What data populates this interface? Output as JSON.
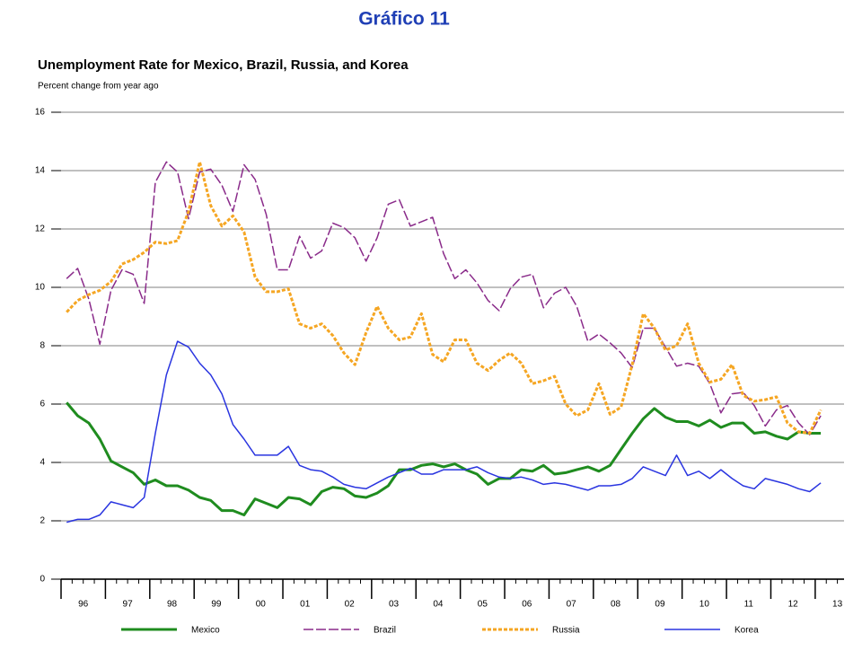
{
  "page_title": "Gráfico 11",
  "chart_data": {
    "type": "line",
    "title": "Unemployment Rate for Mexico, Brazil, Russia, and Korea",
    "subtitle": "Percent change from year ago",
    "x": [
      1996.125,
      1996.375,
      1996.625,
      1996.875,
      1997.125,
      1997.375,
      1997.625,
      1997.875,
      1998.125,
      1998.375,
      1998.625,
      1998.875,
      1999.125,
      1999.375,
      1999.625,
      1999.875,
      2000.125,
      2000.375,
      2000.625,
      2000.875,
      2001.125,
      2001.375,
      2001.625,
      2001.875,
      2002.125,
      2002.375,
      2002.625,
      2002.875,
      2003.125,
      2003.375,
      2003.625,
      2003.875,
      2004.125,
      2004.375,
      2004.625,
      2004.875,
      2005.125,
      2005.375,
      2005.625,
      2005.875,
      2006.125,
      2006.375,
      2006.625,
      2006.875,
      2007.125,
      2007.375,
      2007.625,
      2007.875,
      2008.125,
      2008.375,
      2008.625,
      2008.875,
      2009.125,
      2009.375,
      2009.625,
      2009.875,
      2010.125,
      2010.375,
      2010.625,
      2010.875,
      2011.125,
      2011.375,
      2011.625,
      2011.875,
      2012.125,
      2012.375,
      2012.625,
      2012.875,
      2013.125
    ],
    "xlim": [
      1996,
      2013.65
    ],
    "xticks": [
      {
        "value": 1996,
        "label": "96"
      },
      {
        "value": 1997,
        "label": "97"
      },
      {
        "value": 1998,
        "label": "98"
      },
      {
        "value": 1999,
        "label": "99"
      },
      {
        "value": 2000,
        "label": "00"
      },
      {
        "value": 2001,
        "label": "01"
      },
      {
        "value": 2002,
        "label": "02"
      },
      {
        "value": 2003,
        "label": "03"
      },
      {
        "value": 2004,
        "label": "04"
      },
      {
        "value": 2005,
        "label": "05"
      },
      {
        "value": 2006,
        "label": "06"
      },
      {
        "value": 2007,
        "label": "07"
      },
      {
        "value": 2008,
        "label": "08"
      },
      {
        "value": 2009,
        "label": "09"
      },
      {
        "value": 2010,
        "label": "10"
      },
      {
        "value": 2011,
        "label": "11"
      },
      {
        "value": 2012,
        "label": "12"
      },
      {
        "value": 2013,
        "label": "13"
      }
    ],
    "ylim": [
      0,
      16
    ],
    "yticks": [
      0,
      2,
      4,
      6,
      8,
      10,
      12,
      14,
      16
    ],
    "grid": true,
    "legend": "bottom",
    "series": [
      {
        "name": "Mexico",
        "color": "#1f8c1f",
        "values": [
          6.05,
          5.6,
          5.35,
          4.8,
          4.05,
          3.85,
          3.65,
          3.25,
          3.4,
          3.2,
          3.2,
          3.05,
          2.8,
          2.7,
          2.35,
          2.35,
          2.2,
          2.75,
          2.6,
          2.45,
          2.8,
          2.75,
          2.55,
          3.0,
          3.15,
          3.1,
          2.85,
          2.8,
          2.95,
          3.2,
          3.75,
          3.75,
          3.9,
          3.95,
          3.85,
          3.95,
          3.75,
          3.6,
          3.25,
          3.45,
          3.45,
          3.75,
          3.7,
          3.9,
          3.6,
          3.65,
          3.75,
          3.85,
          3.7,
          3.9,
          4.45,
          5.0,
          5.5,
          5.85,
          5.55,
          5.4,
          5.4,
          5.25,
          5.45,
          5.2,
          5.35,
          5.35,
          5.0,
          5.05,
          4.9,
          4.8,
          5.05,
          5.0,
          5.0
        ]
      },
      {
        "name": "Brazil",
        "color": "#8a2b8a",
        "values": [
          10.3,
          10.65,
          9.6,
          8.05,
          9.9,
          10.6,
          10.45,
          9.45,
          13.6,
          14.3,
          13.95,
          12.35,
          13.95,
          14.05,
          13.5,
          12.6,
          14.2,
          13.7,
          12.5,
          10.6,
          10.6,
          11.75,
          11.0,
          11.25,
          12.2,
          12.05,
          11.7,
          10.9,
          11.7,
          12.85,
          13.0,
          12.1,
          12.25,
          12.4,
          11.15,
          10.3,
          10.6,
          10.15,
          9.55,
          9.2,
          9.95,
          10.35,
          10.45,
          9.3,
          9.8,
          10.0,
          9.35,
          8.15,
          8.4,
          8.1,
          7.75,
          7.25,
          8.6,
          8.6,
          7.95,
          7.3,
          7.4,
          7.3,
          6.7,
          5.7,
          6.35,
          6.4,
          5.95,
          5.25,
          5.8,
          5.95,
          5.35,
          4.95,
          5.6
        ]
      },
      {
        "name": "Russia",
        "color": "#f5a623",
        "values": [
          9.15,
          9.55,
          9.75,
          9.9,
          10.2,
          10.8,
          10.95,
          11.2,
          11.55,
          11.5,
          11.6,
          12.6,
          14.3,
          12.8,
          12.1,
          12.45,
          11.9,
          10.35,
          9.85,
          9.85,
          9.95,
          8.75,
          8.6,
          8.75,
          8.35,
          7.75,
          7.35,
          8.45,
          9.35,
          8.6,
          8.2,
          8.3,
          9.1,
          7.7,
          7.45,
          8.2,
          8.2,
          7.4,
          7.15,
          7.5,
          7.75,
          7.4,
          6.7,
          6.8,
          6.95,
          6.0,
          5.6,
          5.8,
          6.7,
          5.65,
          5.9,
          7.35,
          9.1,
          8.6,
          7.85,
          8.0,
          8.75,
          7.4,
          6.75,
          6.85,
          7.35,
          6.3,
          6.1,
          6.15,
          6.25,
          5.35,
          5.05,
          5.0,
          5.8
        ]
      },
      {
        "name": "Korea",
        "color": "#2a35e0",
        "values": [
          1.95,
          2.05,
          2.05,
          2.2,
          2.65,
          2.55,
          2.45,
          2.8,
          5.0,
          7.0,
          8.15,
          7.95,
          7.4,
          7.0,
          6.35,
          5.3,
          4.8,
          4.25,
          4.25,
          4.25,
          4.55,
          3.9,
          3.75,
          3.7,
          3.5,
          3.25,
          3.15,
          3.1,
          3.3,
          3.5,
          3.65,
          3.8,
          3.6,
          3.6,
          3.75,
          3.75,
          3.75,
          3.85,
          3.65,
          3.5,
          3.45,
          3.5,
          3.4,
          3.25,
          3.3,
          3.25,
          3.15,
          3.05,
          3.2,
          3.2,
          3.25,
          3.45,
          3.85,
          3.7,
          3.55,
          4.25,
          3.55,
          3.7,
          3.45,
          3.75,
          3.45,
          3.2,
          3.1,
          3.45,
          3.35,
          3.25,
          3.1,
          3.0,
          3.3
        ]
      }
    ]
  }
}
